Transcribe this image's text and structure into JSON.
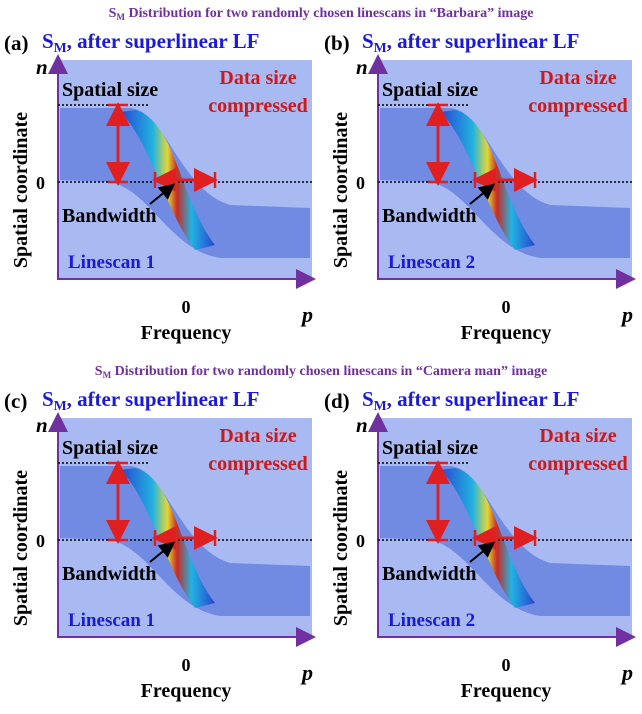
{
  "sections": [
    {
      "title": {
        "main": "S",
        "sub": "M",
        "rest": " Distribution for two randomly chosen linescans in “Barbara” image"
      },
      "panels": [
        {
          "label": "(a)",
          "heading": {
            "main": "S",
            "sub": "M",
            "rest": ", after superlinear LF"
          },
          "y_symbol": "n",
          "y_label": "Spatial coordinate",
          "y_zero": "0",
          "spatial_size": "Spatial size",
          "data_size": [
            "Data size",
            "compressed"
          ],
          "bandwidth": "Bandwidth",
          "linescan": "Linescan 1",
          "x_zero": "0",
          "x_label": "Frequency",
          "x_symbol": "p"
        },
        {
          "label": "(b)",
          "heading": {
            "main": "S",
            "sub": "M",
            "rest": ", after superlinear LF"
          },
          "y_symbol": "n",
          "y_label": "Spatial coordinate",
          "y_zero": "0",
          "spatial_size": "Spatial size",
          "data_size": [
            "Data size",
            "compressed"
          ],
          "bandwidth": "Bandwidth",
          "linescan": "Linescan 2",
          "x_zero": "0",
          "x_label": "Frequency",
          "x_symbol": "p"
        }
      ]
    },
    {
      "title": {
        "main": "S",
        "sub": "M",
        "rest": " Distribution for two randomly chosen linescans in “Camera man” image"
      },
      "panels": [
        {
          "label": "(c)",
          "heading": {
            "main": "S",
            "sub": "M",
            "rest": ", after superlinear LF"
          },
          "y_symbol": "n",
          "y_label": "Spatial coordinate",
          "y_zero": "0",
          "spatial_size": "Spatial size",
          "data_size": [
            "Data size",
            "compressed"
          ],
          "bandwidth": "Bandwidth",
          "linescan": "Linescan 1",
          "x_zero": "0",
          "x_label": "Frequency",
          "x_symbol": "p"
        },
        {
          "label": "(d)",
          "heading": {
            "main": "S",
            "sub": "M",
            "rest": ", after superlinear LF"
          },
          "y_symbol": "n",
          "y_label": "Spatial coordinate",
          "y_zero": "0",
          "spatial_size": "Spatial size",
          "data_size": [
            "Data size",
            "compressed"
          ],
          "bandwidth": "Bandwidth",
          "linescan": "Linescan 2",
          "x_zero": "0",
          "x_label": "Frequency",
          "x_symbol": "p"
        }
      ]
    }
  ]
}
